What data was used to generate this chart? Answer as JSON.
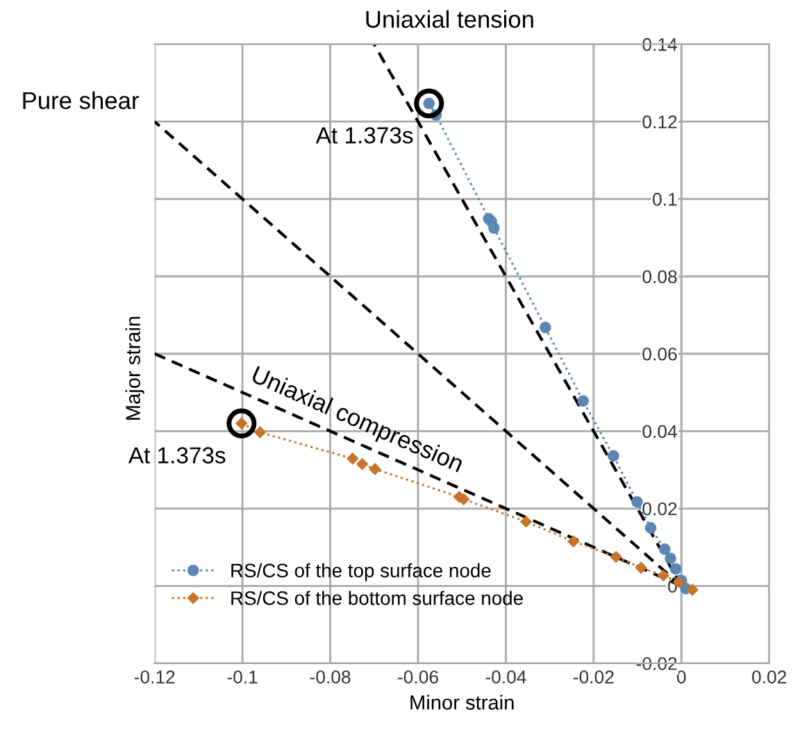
{
  "chart_data": {
    "type": "line",
    "xlabel": "Minor strain",
    "ylabel": "Major strain",
    "xlim": [
      -0.12,
      0.02
    ],
    "ylim": [
      -0.02,
      0.14
    ],
    "xticks": [
      -0.12,
      -0.1,
      -0.08,
      -0.06,
      -0.04,
      -0.02,
      0,
      0.02
    ],
    "yticks": [
      -0.02,
      0,
      0.02,
      0.04,
      0.06,
      0.08,
      0.1,
      0.12,
      0.14
    ],
    "grid": true,
    "legend": "bottom left",
    "series": [
      {
        "color": "#000000",
        "line_style": "dashed",
        "marker": "none",
        "x": [
          0,
          -0.07
        ],
        "values": [
          0,
          0.14
        ]
      },
      {
        "color": "#000000",
        "line_style": "dashed",
        "marker": "none",
        "x": [
          0,
          -0.12
        ],
        "values": [
          0,
          0.12
        ]
      },
      {
        "color": "#000000",
        "line_style": "dashed",
        "marker": "none",
        "x": [
          0,
          -0.12
        ],
        "values": [
          0,
          0.06
        ]
      },
      {
        "name": "RS/CS of the top surface node",
        "color": "#5b87b5",
        "line_style": "dotted",
        "marker": "circle",
        "x": [
          -0.0575,
          -0.0559,
          -0.0439,
          -0.0433,
          -0.0427,
          -0.031,
          -0.0224,
          -0.0155,
          -0.0101,
          -0.007,
          -0.0038,
          -0.0025,
          -0.0013,
          0,
          0.001
        ],
        "values": [
          0.1247,
          0.1217,
          0.0949,
          0.0942,
          0.0925,
          0.0668,
          0.0478,
          0.0336,
          0.0217,
          0.015,
          0.0095,
          0.0071,
          0.0044,
          0.0014,
          -0.0007
        ]
      },
      {
        "name": "RS/CS of the bottom surface node",
        "color": "#c8742a",
        "line_style": "dotted",
        "marker": "diamond",
        "x": [
          -0.1002,
          -0.096,
          -0.0749,
          -0.0727,
          -0.0698,
          -0.0506,
          -0.0496,
          -0.0354,
          -0.0246,
          -0.0149,
          -0.0092,
          -0.0041,
          -0.0006,
          0.0025
        ],
        "values": [
          0.042,
          0.0397,
          0.0329,
          0.0315,
          0.0302,
          0.023,
          0.0224,
          0.0166,
          0.0115,
          0.0075,
          0.0047,
          0.0027,
          0.001,
          -0.001
        ]
      }
    ],
    "annotations": [
      {
        "text": "Uniaxial tension",
        "x": -0.07,
        "y": 0.14
      },
      {
        "text": "Pure shear",
        "x": -0.12,
        "y": 0.12
      },
      {
        "text": "Uniaxial compression",
        "x": -0.075,
        "y": 0.0375
      },
      {
        "text": "At 1.373s",
        "x": -0.0575,
        "y": 0.1247
      },
      {
        "text": "At 1.373s",
        "x": -0.1002,
        "y": 0.042
      }
    ]
  }
}
